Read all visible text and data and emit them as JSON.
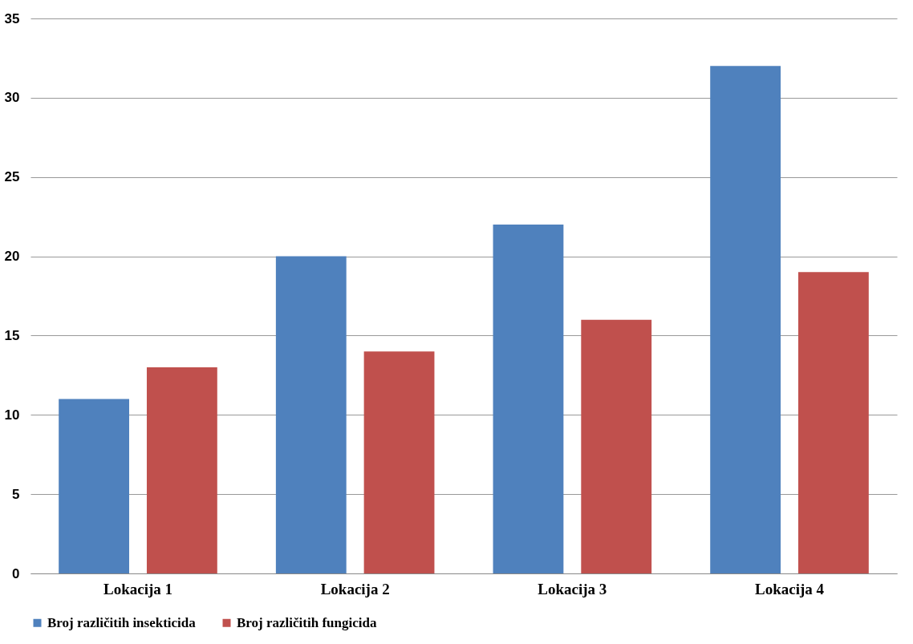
{
  "chart_data": {
    "type": "bar",
    "categories": [
      "Lokacija 1",
      "Lokacija 2",
      "Lokacija 3",
      "Lokacija 4"
    ],
    "series": [
      {
        "name": "Broj različitih insekticida",
        "color": "#4f81bd",
        "values": [
          11,
          20,
          22,
          32
        ]
      },
      {
        "name": "Broj različitih fungicida",
        "color": "#c0504d",
        "values": [
          13,
          14,
          16,
          19
        ]
      }
    ],
    "ylim": [
      0,
      35
    ],
    "yticks": [
      0,
      5,
      10,
      15,
      20,
      25,
      30,
      35
    ],
    "grid": "y",
    "legend": "bottom"
  }
}
